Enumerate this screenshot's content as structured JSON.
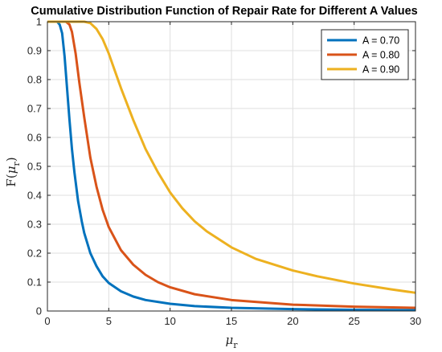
{
  "chart_data": {
    "type": "line",
    "title": "Cumulative Distribution Function of Repair Rate for Different A Values",
    "xlabel": "μ_r",
    "ylabel": "F(μ_r)",
    "xlim": [
      0,
      30
    ],
    "ylim": [
      0,
      1
    ],
    "xticks": [
      "0",
      "5",
      "10",
      "15",
      "20",
      "25",
      "30"
    ],
    "yticks": [
      "0",
      "0.1",
      "0.2",
      "0.3",
      "0.4",
      "0.5",
      "0.6",
      "0.7",
      "0.8",
      "0.9",
      "1"
    ],
    "grid": true,
    "legend_position": "top-right",
    "series": [
      {
        "name": "A = 0.70",
        "color": "#0072BD",
        "x": [
          0,
          0.5,
          0.8,
          1.0,
          1.2,
          1.4,
          1.6,
          1.8,
          2.0,
          2.2,
          2.5,
          2.8,
          3.0,
          3.5,
          4.0,
          4.5,
          5.0,
          6.0,
          7.0,
          8.0,
          10.0,
          12.0,
          15.0,
          20.0,
          25.0,
          30.0
        ],
        "y": [
          1,
          1,
          1,
          0.99,
          0.96,
          0.88,
          0.77,
          0.66,
          0.56,
          0.48,
          0.38,
          0.31,
          0.27,
          0.2,
          0.155,
          0.12,
          0.097,
          0.068,
          0.05,
          0.038,
          0.025,
          0.017,
          0.011,
          0.0065,
          0.0042,
          0.0029
        ]
      },
      {
        "name": "A = 0.80",
        "color": "#D95319",
        "x": [
          0,
          1.0,
          1.5,
          1.8,
          2.0,
          2.3,
          2.6,
          3.0,
          3.5,
          4.0,
          4.5,
          5.0,
          6.0,
          7.0,
          8.0,
          9.0,
          10.0,
          12.0,
          15.0,
          20.0,
          25.0,
          30.0
        ],
        "y": [
          1,
          1,
          1,
          0.99,
          0.965,
          0.89,
          0.79,
          0.67,
          0.53,
          0.43,
          0.35,
          0.29,
          0.21,
          0.16,
          0.125,
          0.1,
          0.082,
          0.058,
          0.038,
          0.022,
          0.015,
          0.011
        ]
      },
      {
        "name": "A = 0.90",
        "color": "#EDB120",
        "x": [
          0,
          2.0,
          3.0,
          3.5,
          4.0,
          4.5,
          5.0,
          5.5,
          6.0,
          7.0,
          8.0,
          9.0,
          10.0,
          11.0,
          12.0,
          13.0,
          15.0,
          17.0,
          20.0,
          22.0,
          25.0,
          28.0,
          30.0
        ],
        "y": [
          1,
          1,
          1,
          0.995,
          0.975,
          0.94,
          0.89,
          0.83,
          0.77,
          0.66,
          0.56,
          0.48,
          0.41,
          0.355,
          0.31,
          0.275,
          0.22,
          0.18,
          0.14,
          0.12,
          0.095,
          0.075,
          0.063
        ]
      }
    ]
  }
}
